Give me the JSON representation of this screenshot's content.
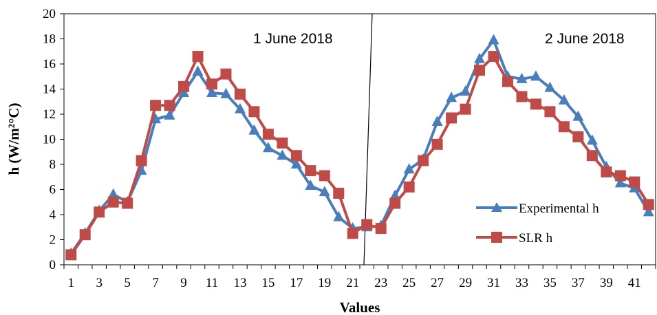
{
  "chart_data": {
    "type": "line",
    "xlabel": "Values",
    "ylabel": "h (W/m²°C)",
    "ylim": [
      0,
      20
    ],
    "yticks": [
      "0",
      "2",
      "4",
      "6",
      "8",
      "10",
      "12",
      "14",
      "16",
      "18",
      "20"
    ],
    "xticks": [
      "1",
      "3",
      "5",
      "7",
      "9",
      "11",
      "13",
      "15",
      "17",
      "19",
      "21",
      "23",
      "25",
      "27",
      "29",
      "31",
      "33",
      "35",
      "37",
      "39",
      "41"
    ],
    "annotations": [
      "1 June 2018",
      "2 June 2018"
    ],
    "grid": false,
    "legend_position": "bottom-right",
    "x": [
      1,
      2,
      3,
      4,
      5,
      6,
      7,
      8,
      9,
      10,
      11,
      12,
      13,
      14,
      15,
      16,
      17,
      18,
      19,
      20,
      21,
      22,
      23,
      24,
      25,
      26,
      27,
      28,
      29,
      30,
      31,
      32,
      33,
      34,
      35,
      36,
      37,
      38,
      39,
      40,
      41,
      42
    ],
    "series": [
      {
        "name": "Experimental h",
        "color": "#4a7ebb",
        "marker": "triangle",
        "values": [
          0.9,
          2.5,
          4.3,
          5.6,
          5.0,
          7.5,
          11.6,
          11.9,
          13.7,
          15.4,
          13.7,
          13.6,
          12.4,
          10.7,
          9.3,
          8.7,
          8.0,
          6.3,
          5.8,
          3.8,
          2.9,
          3.0,
          3.1,
          5.5,
          7.6,
          8.4,
          11.4,
          13.3,
          13.8,
          16.4,
          17.9,
          15.0,
          14.8,
          15.0,
          14.1,
          13.1,
          11.8,
          9.9,
          7.8,
          6.5,
          6.1,
          4.2
        ]
      },
      {
        "name": "SLR h",
        "color": "#be4b48",
        "marker": "square",
        "values": [
          0.8,
          2.4,
          4.2,
          5.0,
          4.9,
          8.3,
          12.7,
          12.7,
          14.2,
          16.6,
          14.4,
          15.2,
          13.6,
          12.2,
          10.4,
          9.7,
          8.7,
          7.5,
          7.1,
          5.7,
          2.5,
          3.2,
          2.9,
          4.9,
          6.2,
          8.3,
          9.6,
          11.7,
          12.4,
          15.5,
          16.6,
          14.6,
          13.4,
          12.8,
          12.2,
          11.0,
          10.2,
          8.7,
          7.4,
          7.1,
          6.6,
          4.8
        ]
      }
    ]
  }
}
